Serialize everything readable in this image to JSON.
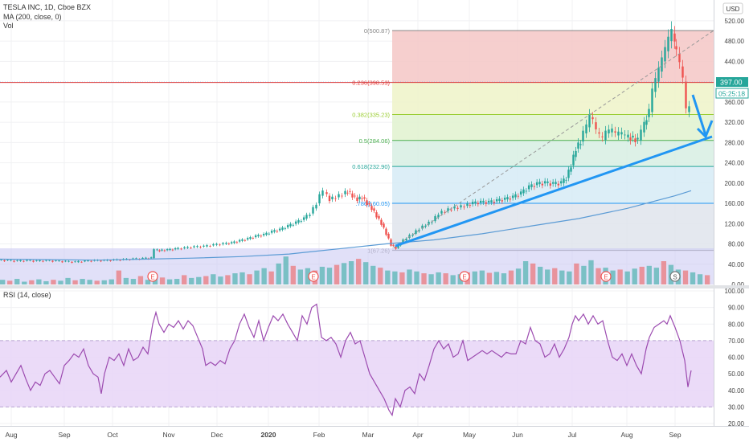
{
  "header": {
    "symbol_line": "TESLA INC, 1D, Cboe BZX",
    "ma_label": "MA (200, close, 0)",
    "vol_label": "Vol",
    "currency": "USD"
  },
  "price_tag": {
    "price": "397.00",
    "countdown": "05:25:18"
  },
  "rsi_label": "RSI (14, close)",
  "colors": {
    "up": "#26a69a",
    "down": "#ef5350",
    "ma": "#5b9bd5",
    "trend": "#2196f3",
    "rsi_line": "#9c4bb0",
    "rsi_band": "#e9d7f7",
    "vol_zone": "#c9c6f3"
  },
  "chart_data": [
    {
      "type": "candlestick",
      "x": [
        "Aug",
        "Sep",
        "Oct",
        "Nov",
        "Dec",
        "2020",
        "Feb",
        "Mar",
        "Apr",
        "May",
        "Jun",
        "Jul",
        "Aug",
        "Sep"
      ],
      "ylim": [
        0,
        540
      ],
      "y_ticks": [
        0,
        40,
        80,
        120,
        160,
        200,
        240,
        280,
        320,
        360,
        440,
        480,
        520
      ],
      "y_tick_labels": [
        "0.00",
        "40.00",
        "80.00",
        "120.00",
        "160.00",
        "200.00",
        "240.00",
        "280.00",
        "320.00",
        "360.00",
        "440.00",
        "480.00",
        "520.00"
      ],
      "close_path": [
        [
          0,
          48
        ],
        [
          12,
          47
        ],
        [
          24,
          46
        ],
        [
          36,
          47
        ],
        [
          48,
          46
        ],
        [
          60,
          47
        ],
        [
          72,
          46
        ],
        [
          84,
          45
        ],
        [
          96,
          44
        ],
        [
          108,
          46
        ],
        [
          120,
          47
        ],
        [
          132,
          47
        ],
        [
          144,
          48
        ],
        [
          156,
          49
        ],
        [
          168,
          50
        ],
        [
          180,
          51
        ],
        [
          190,
          52
        ],
        [
          194,
          68
        ],
        [
          200,
          67
        ],
        [
          210,
          68
        ],
        [
          220,
          70
        ],
        [
          232,
          72
        ],
        [
          244,
          74
        ],
        [
          256,
          75
        ],
        [
          268,
          78
        ],
        [
          280,
          80
        ],
        [
          290,
          82
        ],
        [
          300,
          86
        ],
        [
          310,
          90
        ],
        [
          320,
          95
        ],
        [
          330,
          98
        ],
        [
          340,
          104
        ],
        [
          350,
          108
        ],
        [
          360,
          115
        ],
        [
          370,
          122
        ],
        [
          380,
          130
        ],
        [
          388,
          140
        ],
        [
          396,
          160
        ],
        [
          400,
          175
        ],
        [
          405,
          182
        ],
        [
          412,
          168
        ],
        [
          420,
          172
        ],
        [
          428,
          178
        ],
        [
          434,
          184
        ],
        [
          440,
          175
        ],
        [
          446,
          168
        ],
        [
          452,
          172
        ],
        [
          458,
          160
        ],
        [
          464,
          150
        ],
        [
          470,
          135
        ],
        [
          476,
          120
        ],
        [
          482,
          100
        ],
        [
          488,
          78
        ],
        [
          494,
          72
        ],
        [
          500,
          82
        ],
        [
          508,
          92
        ],
        [
          516,
          100
        ],
        [
          524,
          110
        ],
        [
          532,
          118
        ],
        [
          540,
          125
        ],
        [
          548,
          140
        ],
        [
          556,
          145
        ],
        [
          564,
          150
        ],
        [
          572,
          152
        ],
        [
          580,
          155
        ],
        [
          590,
          160
        ],
        [
          600,
          162
        ],
        [
          610,
          162
        ],
        [
          620,
          165
        ],
        [
          630,
          168
        ],
        [
          640,
          172
        ],
        [
          650,
          180
        ],
        [
          660,
          192
        ],
        [
          670,
          198
        ],
        [
          680,
          200
        ],
        [
          690,
          198
        ],
        [
          700,
          200
        ],
        [
          706,
          210
        ],
        [
          712,
          235
        ],
        [
          718,
          268
        ],
        [
          724,
          282
        ],
        [
          728,
          298
        ],
        [
          732,
          310
        ],
        [
          736,
          330
        ],
        [
          740,
          320
        ],
        [
          744,
          300
        ],
        [
          748,
          292
        ],
        [
          752,
          285
        ],
        [
          756,
          298
        ],
        [
          760,
          300
        ],
        [
          764,
          302
        ],
        [
          768,
          294
        ],
        [
          772,
          296
        ],
        [
          776,
          295
        ],
        [
          780,
          290
        ],
        [
          786,
          290
        ],
        [
          792,
          286
        ],
        [
          796,
          284
        ],
        [
          800,
          300
        ],
        [
          806,
          330
        ],
        [
          810,
          340
        ],
        [
          814,
          380
        ],
        [
          818,
          400
        ],
        [
          822,
          420
        ],
        [
          826,
          440
        ],
        [
          830,
          460
        ],
        [
          834,
          480
        ],
        [
          838,
          495
        ],
        [
          840,
          470
        ],
        [
          844,
          455
        ],
        [
          848,
          430
        ],
        [
          852,
          400
        ],
        [
          856,
          340
        ],
        [
          860,
          345
        ]
      ]
    },
    {
      "type": "line",
      "name": "MA (200, close, 0)",
      "points": [
        [
          0,
          50
        ],
        [
          60,
          49
        ],
        [
          120,
          48
        ],
        [
          180,
          50
        ],
        [
          240,
          52
        ],
        [
          300,
          55
        ],
        [
          360,
          60
        ],
        [
          420,
          70
        ],
        [
          480,
          80
        ],
        [
          540,
          88
        ],
        [
          600,
          100
        ],
        [
          660,
          115
        ],
        [
          720,
          130
        ],
        [
          780,
          150
        ],
        [
          840,
          175
        ],
        [
          860,
          185
        ]
      ]
    },
    {
      "type": "fibonacci",
      "levels": [
        {
          "ratio": 0,
          "price": 500.87,
          "label": "0(500.87)"
        },
        {
          "ratio": 0.236,
          "price": 398.53,
          "label": "0.236(398.53)"
        },
        {
          "ratio": 0.382,
          "price": 335.23,
          "label": "0.382(335.23)"
        },
        {
          "ratio": 0.5,
          "price": 284.06,
          "label": "0.5(284.06)"
        },
        {
          "ratio": 0.618,
          "price": 232.9,
          "label": "0.618(232.90)"
        },
        {
          "ratio": 0.786,
          "price": 160.05,
          "label": ".786(160.05)"
        },
        {
          "ratio": 1,
          "price": 67.26,
          "label": "1(67.26)"
        }
      ]
    },
    {
      "type": "bar",
      "name": "Vol",
      "ylim": [
        0,
        100
      ],
      "values": [
        10,
        8,
        12,
        6,
        9,
        11,
        7,
        10,
        8,
        14,
        9,
        12,
        10,
        8,
        9,
        11,
        30,
        14,
        12,
        18,
        10,
        13,
        15,
        11,
        12,
        20,
        14,
        16,
        18,
        22,
        17,
        20,
        24,
        26,
        22,
        30,
        35,
        28,
        45,
        60,
        40,
        32,
        35,
        30,
        38,
        36,
        42,
        46,
        50,
        55,
        48,
        40,
        36,
        30,
        28,
        26,
        32,
        28,
        24,
        22,
        26,
        24,
        20,
        22,
        26,
        28,
        30,
        25,
        27,
        24,
        30,
        34,
        50,
        45,
        38,
        32,
        35,
        30,
        28,
        45,
        40,
        52,
        35,
        36,
        30,
        32,
        28,
        34,
        38,
        40,
        36,
        50,
        42,
        32,
        30,
        26,
        22,
        20
      ]
    },
    {
      "type": "line",
      "name": "RSI (14, close)",
      "ylim": [
        20,
        100
      ],
      "y_ticks": [
        20,
        30,
        40,
        50,
        60,
        70,
        80,
        90,
        100
      ],
      "y_tick_labels": [
        "20.00",
        "30.00",
        "40.00",
        "50.00",
        "60.00",
        "70.00",
        "80.00",
        "90.00",
        "100.00"
      ],
      "band": [
        30,
        70
      ],
      "points": [
        [
          0,
          48
        ],
        [
          8,
          52
        ],
        [
          14,
          45
        ],
        [
          20,
          50
        ],
        [
          26,
          55
        ],
        [
          32,
          47
        ],
        [
          38,
          40
        ],
        [
          44,
          45
        ],
        [
          50,
          43
        ],
        [
          56,
          50
        ],
        [
          62,
          52
        ],
        [
          68,
          48
        ],
        [
          74,
          44
        ],
        [
          80,
          55
        ],
        [
          86,
          58
        ],
        [
          92,
          62
        ],
        [
          98,
          60
        ],
        [
          104,
          65
        ],
        [
          110,
          55
        ],
        [
          116,
          50
        ],
        [
          122,
          48
        ],
        [
          126,
          38
        ],
        [
          130,
          50
        ],
        [
          136,
          60
        ],
        [
          142,
          58
        ],
        [
          148,
          62
        ],
        [
          154,
          55
        ],
        [
          160,
          65
        ],
        [
          166,
          58
        ],
        [
          172,
          60
        ],
        [
          178,
          66
        ],
        [
          184,
          62
        ],
        [
          190,
          80
        ],
        [
          194,
          87
        ],
        [
          198,
          80
        ],
        [
          204,
          75
        ],
        [
          210,
          80
        ],
        [
          216,
          78
        ],
        [
          222,
          82
        ],
        [
          228,
          77
        ],
        [
          234,
          82
        ],
        [
          240,
          79
        ],
        [
          246,
          72
        ],
        [
          252,
          65
        ],
        [
          256,
          55
        ],
        [
          262,
          57
        ],
        [
          268,
          55
        ],
        [
          274,
          58
        ],
        [
          280,
          56
        ],
        [
          286,
          65
        ],
        [
          292,
          70
        ],
        [
          298,
          80
        ],
        [
          304,
          86
        ],
        [
          310,
          78
        ],
        [
          316,
          72
        ],
        [
          322,
          82
        ],
        [
          328,
          70
        ],
        [
          334,
          78
        ],
        [
          340,
          85
        ],
        [
          346,
          82
        ],
        [
          352,
          86
        ],
        [
          358,
          80
        ],
        [
          364,
          75
        ],
        [
          370,
          70
        ],
        [
          376,
          85
        ],
        [
          382,
          80
        ],
        [
          388,
          90
        ],
        [
          394,
          92
        ],
        [
          400,
          72
        ],
        [
          406,
          70
        ],
        [
          412,
          72
        ],
        [
          418,
          68
        ],
        [
          424,
          60
        ],
        [
          430,
          70
        ],
        [
          436,
          75
        ],
        [
          442,
          68
        ],
        [
          448,
          70
        ],
        [
          454,
          60
        ],
        [
          460,
          50
        ],
        [
          466,
          45
        ],
        [
          472,
          40
        ],
        [
          478,
          35
        ],
        [
          484,
          28
        ],
        [
          488,
          25
        ],
        [
          492,
          35
        ],
        [
          498,
          30
        ],
        [
          504,
          40
        ],
        [
          510,
          42
        ],
        [
          516,
          38
        ],
        [
          522,
          50
        ],
        [
          528,
          46
        ],
        [
          534,
          55
        ],
        [
          540,
          65
        ],
        [
          546,
          70
        ],
        [
          552,
          65
        ],
        [
          558,
          68
        ],
        [
          564,
          60
        ],
        [
          570,
          62
        ],
        [
          576,
          70
        ],
        [
          582,
          58
        ],
        [
          588,
          60
        ],
        [
          594,
          62
        ],
        [
          600,
          64
        ],
        [
          606,
          62
        ],
        [
          612,
          64
        ],
        [
          618,
          62
        ],
        [
          624,
          60
        ],
        [
          630,
          63
        ],
        [
          636,
          62
        ],
        [
          642,
          62
        ],
        [
          648,
          70
        ],
        [
          654,
          68
        ],
        [
          660,
          78
        ],
        [
          666,
          70
        ],
        [
          672,
          68
        ],
        [
          678,
          60
        ],
        [
          684,
          62
        ],
        [
          690,
          68
        ],
        [
          696,
          60
        ],
        [
          702,
          65
        ],
        [
          708,
          72
        ],
        [
          712,
          80
        ],
        [
          716,
          85
        ],
        [
          720,
          82
        ],
        [
          726,
          86
        ],
        [
          732,
          80
        ],
        [
          738,
          85
        ],
        [
          744,
          80
        ],
        [
          750,
          82
        ],
        [
          756,
          70
        ],
        [
          762,
          60
        ],
        [
          768,
          58
        ],
        [
          774,
          62
        ],
        [
          780,
          55
        ],
        [
          786,
          62
        ],
        [
          792,
          55
        ],
        [
          798,
          50
        ],
        [
          804,
          65
        ],
        [
          808,
          72
        ],
        [
          814,
          78
        ],
        [
          820,
          80
        ],
        [
          826,
          82
        ],
        [
          830,
          80
        ],
        [
          834,
          85
        ],
        [
          840,
          78
        ],
        [
          846,
          70
        ],
        [
          852,
          58
        ],
        [
          856,
          42
        ],
        [
          860,
          52
        ]
      ]
    }
  ],
  "earnings_markers": [
    "E",
    "E",
    "E",
    "E"
  ],
  "split_marker": "S"
}
